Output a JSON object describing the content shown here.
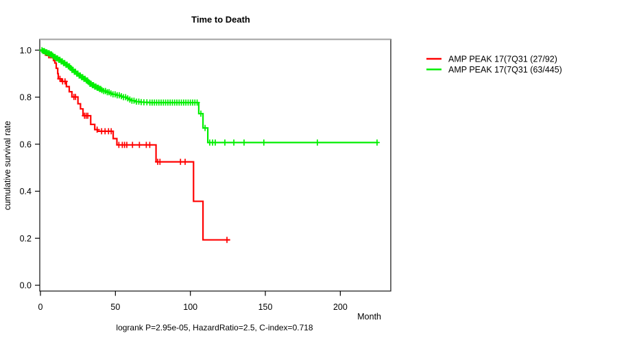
{
  "header": {
    "title": "Time to Death"
  },
  "axes": {
    "x_label": "Month",
    "y_label": "cumulative survival rate",
    "x_tick_labels": [
      "0",
      "50",
      "100",
      "150",
      "200"
    ],
    "y_tick_labels": [
      "0.0",
      "0.2",
      "0.4",
      "0.6",
      "0.8",
      "1.0"
    ]
  },
  "legend": {
    "entries": [
      {
        "label": "AMP PEAK 17(7Q31 (27/92)",
        "color": "#ff0000"
      },
      {
        "label": "AMP PEAK 17(7Q31 (63/445)",
        "color": "#00ee00"
      }
    ]
  },
  "footer": {
    "caption": "logrank P=2.95e-05, HazardRatio=2.5, C-index=0.718"
  },
  "chart_data": {
    "type": "line",
    "subtype": "kaplan-meier-step-survival",
    "title": "Time to Death",
    "xlabel": "Month",
    "ylabel": "cumulative survival rate",
    "xlim": [
      0,
      234
    ],
    "ylim": [
      0.0,
      1.0
    ],
    "x_ticks": [
      0,
      50,
      100,
      150,
      200
    ],
    "y_ticks": [
      0.0,
      0.2,
      0.4,
      0.6,
      0.8,
      1.0
    ],
    "grid": false,
    "legend_position": "right-outside",
    "annotation": "logrank P=2.95e-05, HazardRatio=2.5, C-index=0.718",
    "stats": {
      "logrank_p": "2.95e-05",
      "hazard_ratio": 2.5,
      "c_index": 0.718
    },
    "series": [
      {
        "name": "AMP PEAK 17(7Q31 (27/92)",
        "events_over_n": "27/92",
        "color": "#ff0000",
        "end_time": 126.5,
        "steps": [
          [
            0,
            1
          ],
          [
            2.3,
            0.989
          ],
          [
            4.1,
            0.978
          ],
          [
            8.7,
            0.956
          ],
          [
            9.6,
            0.945
          ],
          [
            10.5,
            0.923
          ],
          [
            11.5,
            0.9
          ],
          [
            11.9,
            0.878
          ],
          [
            14,
            0.867
          ],
          [
            17.3,
            0.845
          ],
          [
            19.2,
            0.823
          ],
          [
            21,
            0.801
          ],
          [
            25,
            0.772
          ],
          [
            26.7,
            0.75
          ],
          [
            28.4,
            0.721
          ],
          [
            33.5,
            0.684
          ],
          [
            36.2,
            0.662
          ],
          [
            38,
            0.655
          ],
          [
            48.5,
            0.624
          ],
          [
            51,
            0.597
          ],
          [
            77.1,
            0.525
          ],
          [
            102.1,
            0.357
          ],
          [
            108.4,
            0.193
          ]
        ],
        "censor_times": [
          3.2,
          5.5,
          6.4,
          7.3,
          13,
          14.8,
          16.4,
          22.3,
          23.4,
          29.4,
          30.5,
          31.6,
          37.8,
          40.8,
          43.1,
          45.4,
          47.2,
          52.3,
          54.6,
          56.1,
          57.6,
          61.4,
          66,
          70.6,
          72.9,
          78.2,
          79.7,
          93.4,
          96.5,
          124.4
        ]
      },
      {
        "name": "AMP PEAK 17(7Q31 (63/445)",
        "events_over_n": "63/445",
        "color": "#00ee00",
        "end_time": 225.3,
        "steps": [
          [
            0,
            1
          ],
          [
            1.5,
            0.996
          ],
          [
            3,
            0.991
          ],
          [
            4.5,
            0.987
          ],
          [
            6,
            0.982
          ],
          [
            7.5,
            0.977
          ],
          [
            9,
            0.971
          ],
          [
            10.5,
            0.965
          ],
          [
            12,
            0.959
          ],
          [
            13.5,
            0.952
          ],
          [
            15,
            0.945
          ],
          [
            16.5,
            0.938
          ],
          [
            18,
            0.931
          ],
          [
            19.5,
            0.924
          ],
          [
            21,
            0.916
          ],
          [
            22.5,
            0.908
          ],
          [
            24,
            0.9
          ],
          [
            25.5,
            0.892
          ],
          [
            27,
            0.885
          ],
          [
            28.5,
            0.878
          ],
          [
            30,
            0.871
          ],
          [
            31.5,
            0.864
          ],
          [
            33,
            0.857
          ],
          [
            34.5,
            0.851
          ],
          [
            36,
            0.845
          ],
          [
            37.5,
            0.84
          ],
          [
            39,
            0.835
          ],
          [
            40.5,
            0.83
          ],
          [
            42,
            0.826
          ],
          [
            44,
            0.821
          ],
          [
            46,
            0.816
          ],
          [
            48,
            0.812
          ],
          [
            50.5,
            0.808
          ],
          [
            53,
            0.804
          ],
          [
            55,
            0.8
          ],
          [
            57,
            0.795
          ],
          [
            59,
            0.79
          ],
          [
            61,
            0.785
          ],
          [
            63,
            0.781
          ],
          [
            66,
            0.779
          ],
          [
            69,
            0.778
          ],
          [
            72,
            0.777
          ],
          [
            105.6,
            0.73
          ],
          [
            108.4,
            0.669
          ],
          [
            111.6,
            0.607
          ]
        ],
        "censor_times": [
          1,
          1.8,
          2.6,
          3.4,
          4.2,
          5,
          5.8,
          6.6,
          7.4,
          8.2,
          9,
          9.8,
          10.6,
          11.4,
          12.2,
          13,
          13.8,
          14.6,
          15.4,
          16.2,
          17,
          17.8,
          18.6,
          19.4,
          20.2,
          21,
          21.8,
          22.6,
          23.4,
          24.2,
          25,
          25.8,
          26.6,
          27.4,
          28.2,
          29,
          29.8,
          30.6,
          31.4,
          32.2,
          33,
          33.8,
          34.6,
          35.4,
          36.2,
          37,
          37.8,
          38.6,
          39.4,
          40.2,
          41,
          42.2,
          43.4,
          44.6,
          45.8,
          47,
          48.4,
          49.8,
          51.2,
          52.6,
          54,
          55.4,
          56.8,
          58.2,
          59.6,
          61,
          62.4,
          64,
          65.6,
          67.2,
          69,
          71,
          73,
          74.5,
          76,
          77.5,
          79,
          80.5,
          82,
          83.5,
          85,
          86.5,
          88,
          89.5,
          91,
          92.5,
          94,
          95.5,
          97,
          98.5,
          100,
          101.5,
          103,
          104.5,
          107,
          109.8,
          112.9,
          114.8,
          116.6,
          123,
          129,
          135.8,
          149,
          184.7,
          224.5
        ]
      }
    ]
  }
}
